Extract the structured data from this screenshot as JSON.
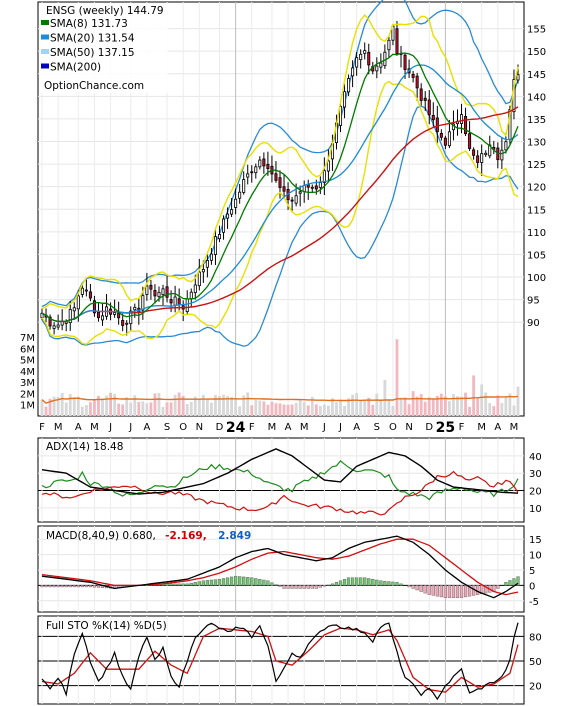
{
  "chart_data": {
    "type": "line",
    "price_panel": {
      "ticker_label": "ENSG (weekly) 144.79",
      "watermark": "OptionChance.com",
      "legend": [
        {
          "text": "SMA(8) 131.73",
          "color": "#007a00"
        },
        {
          "text": "SMA(20) 131.54",
          "color": "#1a8cd8"
        },
        {
          "text": "SMA(50) 137.15",
          "color": "#9fd4f5"
        },
        {
          "text": "SMA(200)",
          "color": "#0000c0"
        }
      ],
      "y_ticks": [
        90,
        95,
        100,
        105,
        110,
        115,
        120,
        125,
        130,
        135,
        140,
        145,
        150,
        155
      ],
      "ylim": [
        86.5,
        160
      ],
      "volume_ticks": [
        "1M",
        "2M",
        "3M",
        "4M",
        "5M",
        "6M",
        "7M"
      ],
      "x_months": [
        {
          "label": "F",
          "i": 0
        },
        {
          "label": "M",
          "i": 4
        },
        {
          "label": "A",
          "i": 9
        },
        {
          "label": "M",
          "i": 13
        },
        {
          "label": "J",
          "i": 17
        },
        {
          "label": "J",
          "i": 22
        },
        {
          "label": "A",
          "i": 26
        },
        {
          "label": "S",
          "i": 31
        },
        {
          "label": "O",
          "i": 35
        },
        {
          "label": "N",
          "i": 39
        },
        {
          "label": "D",
          "i": 44
        },
        {
          "label": "24",
          "i": 48,
          "bold": true
        },
        {
          "label": "F",
          "i": 52
        },
        {
          "label": "M",
          "i": 57
        },
        {
          "label": "A",
          "i": 61
        },
        {
          "label": "M",
          "i": 65
        },
        {
          "label": "J",
          "i": 70
        },
        {
          "label": "J",
          "i": 74
        },
        {
          "label": "A",
          "i": 78
        },
        {
          "label": "S",
          "i": 83
        },
        {
          "label": "O",
          "i": 87
        },
        {
          "label": "N",
          "i": 91
        },
        {
          "label": "D",
          "i": 96
        },
        {
          "label": "25",
          "i": 100,
          "bold": true
        },
        {
          "label": "F",
          "i": 104
        },
        {
          "label": "M",
          "i": 109
        },
        {
          "label": "A",
          "i": 113
        },
        {
          "label": "M",
          "i": 117
        }
      ],
      "close_anchors": [
        [
          0,
          92
        ],
        [
          2,
          90
        ],
        [
          4,
          89.5
        ],
        [
          6,
          91
        ],
        [
          8,
          93
        ],
        [
          9,
          96
        ],
        [
          10,
          98
        ],
        [
          12,
          95
        ],
        [
          14,
          91
        ],
        [
          16,
          93
        ],
        [
          18,
          92
        ],
        [
          20,
          90
        ],
        [
          22,
          91.5
        ],
        [
          24,
          93
        ],
        [
          25,
          96
        ],
        [
          27,
          98
        ],
        [
          28,
          96
        ],
        [
          30,
          97
        ],
        [
          32,
          95
        ],
        [
          34,
          94
        ],
        [
          35,
          93.5
        ],
        [
          36,
          95
        ],
        [
          37,
          97
        ],
        [
          38,
          99
        ],
        [
          40,
          102
        ],
        [
          42,
          106
        ],
        [
          44,
          110
        ],
        [
          46,
          114
        ],
        [
          48,
          117
        ],
        [
          50,
          121
        ],
        [
          52,
          124
        ],
        [
          54,
          126
        ],
        [
          56,
          125
        ],
        [
          58,
          121
        ],
        [
          60,
          118
        ],
        [
          62,
          117
        ],
        [
          64,
          119
        ],
        [
          66,
          120
        ],
        [
          68,
          120
        ],
        [
          70,
          123
        ],
        [
          72,
          130
        ],
        [
          74,
          137
        ],
        [
          76,
          143
        ],
        [
          78,
          148
        ],
        [
          80,
          150
        ],
        [
          82,
          146
        ],
        [
          84,
          148
        ],
        [
          86,
          152
        ],
        [
          87,
          155
        ],
        [
          88,
          150
        ],
        [
          90,
          147
        ],
        [
          92,
          144
        ],
        [
          94,
          140
        ],
        [
          96,
          136
        ],
        [
          98,
          132
        ],
        [
          100,
          130
        ],
        [
          102,
          133
        ],
        [
          104,
          137
        ],
        [
          106,
          128
        ],
        [
          108,
          125
        ],
        [
          110,
          128
        ],
        [
          112,
          129
        ],
        [
          113,
          127
        ],
        [
          115,
          131
        ],
        [
          116,
          137
        ],
        [
          117,
          143
        ],
        [
          118,
          144.79
        ]
      ],
      "sma8_end": 131.73,
      "sma20_end": 131.54,
      "sma50_end": 137.15
    },
    "adx_panel": {
      "label": "ADX(14) 18.48",
      "y_ticks": [
        10,
        20,
        30,
        40
      ],
      "ylim": [
        3,
        48
      ],
      "adx_anchors": [
        [
          0,
          32
        ],
        [
          6,
          30
        ],
        [
          12,
          22
        ],
        [
          18,
          20
        ],
        [
          24,
          18
        ],
        [
          30,
          19
        ],
        [
          36,
          22
        ],
        [
          40,
          24
        ],
        [
          46,
          30
        ],
        [
          52,
          38
        ],
        [
          58,
          44
        ],
        [
          62,
          40
        ],
        [
          66,
          33
        ],
        [
          70,
          26
        ],
        [
          74,
          25
        ],
        [
          78,
          34
        ],
        [
          82,
          38
        ],
        [
          86,
          42
        ],
        [
          90,
          40
        ],
        [
          94,
          34
        ],
        [
          98,
          26
        ],
        [
          102,
          22
        ],
        [
          106,
          21
        ],
        [
          110,
          20
        ],
        [
          114,
          19
        ],
        [
          118,
          18.48
        ]
      ],
      "plus_di_anchors": [
        [
          0,
          22
        ],
        [
          4,
          25
        ],
        [
          8,
          26
        ],
        [
          10,
          30
        ],
        [
          12,
          24
        ],
        [
          16,
          23
        ],
        [
          20,
          17
        ],
        [
          24,
          18
        ],
        [
          28,
          24
        ],
        [
          32,
          22
        ],
        [
          36,
          28
        ],
        [
          38,
          30
        ],
        [
          40,
          33
        ],
        [
          44,
          34
        ],
        [
          48,
          32
        ],
        [
          52,
          30
        ],
        [
          56,
          24
        ],
        [
          60,
          21
        ],
        [
          62,
          20
        ],
        [
          64,
          24
        ],
        [
          66,
          25
        ],
        [
          70,
          31
        ],
        [
          74,
          36
        ],
        [
          78,
          32
        ],
        [
          82,
          31
        ],
        [
          86,
          28
        ],
        [
          88,
          20
        ],
        [
          92,
          18
        ],
        [
          96,
          16
        ],
        [
          100,
          20
        ],
        [
          104,
          22
        ],
        [
          108,
          19
        ],
        [
          112,
          18
        ],
        [
          115,
          20
        ],
        [
          118,
          26
        ]
      ],
      "minus_di_anchors": [
        [
          0,
          19
        ],
        [
          4,
          17
        ],
        [
          8,
          16
        ],
        [
          12,
          20
        ],
        [
          16,
          21
        ],
        [
          20,
          23
        ],
        [
          24,
          22
        ],
        [
          28,
          18
        ],
        [
          32,
          19
        ],
        [
          36,
          17
        ],
        [
          40,
          14
        ],
        [
          44,
          12
        ],
        [
          48,
          10
        ],
        [
          52,
          9
        ],
        [
          56,
          10
        ],
        [
          60,
          17
        ],
        [
          64,
          12
        ],
        [
          68,
          11
        ],
        [
          72,
          10
        ],
        [
          76,
          8
        ],
        [
          80,
          7
        ],
        [
          84,
          7
        ],
        [
          86,
          8
        ],
        [
          90,
          16
        ],
        [
          94,
          20
        ],
        [
          98,
          28
        ],
        [
          102,
          30
        ],
        [
          106,
          25
        ],
        [
          108,
          27
        ],
        [
          112,
          22
        ],
        [
          115,
          26
        ],
        [
          118,
          20
        ]
      ]
    },
    "macd_panel": {
      "label_prefix": "MACD(8,40,9) 0.680,",
      "signal_value": "-2.169,",
      "hist_value": "2.849",
      "y_ticks": [
        -5,
        0,
        5,
        10,
        15
      ],
      "ylim": [
        -8,
        18
      ],
      "macd_anchors": [
        [
          0,
          3
        ],
        [
          6,
          2
        ],
        [
          12,
          1
        ],
        [
          18,
          -1
        ],
        [
          24,
          0
        ],
        [
          30,
          1
        ],
        [
          36,
          2
        ],
        [
          40,
          4
        ],
        [
          44,
          6
        ],
        [
          48,
          9
        ],
        [
          52,
          11
        ],
        [
          56,
          12
        ],
        [
          60,
          10
        ],
        [
          64,
          9
        ],
        [
          68,
          8
        ],
        [
          72,
          9
        ],
        [
          76,
          12
        ],
        [
          80,
          14
        ],
        [
          84,
          15
        ],
        [
          88,
          16
        ],
        [
          92,
          14
        ],
        [
          96,
          10
        ],
        [
          100,
          5
        ],
        [
          104,
          1
        ],
        [
          108,
          -2
        ],
        [
          112,
          -4
        ],
        [
          115,
          -2
        ],
        [
          118,
          0.68
        ]
      ],
      "signal_anchors": [
        [
          0,
          3.5
        ],
        [
          6,
          2.5
        ],
        [
          12,
          1.5
        ],
        [
          18,
          0
        ],
        [
          24,
          0
        ],
        [
          30,
          0.5
        ],
        [
          36,
          1.5
        ],
        [
          40,
          2.5
        ],
        [
          44,
          4
        ],
        [
          48,
          6
        ],
        [
          52,
          8.5
        ],
        [
          56,
          10.5
        ],
        [
          60,
          11
        ],
        [
          64,
          10
        ],
        [
          68,
          9
        ],
        [
          72,
          8.5
        ],
        [
          76,
          9.5
        ],
        [
          80,
          11.5
        ],
        [
          84,
          13.5
        ],
        [
          88,
          15
        ],
        [
          92,
          15
        ],
        [
          96,
          13
        ],
        [
          100,
          9
        ],
        [
          104,
          5
        ],
        [
          108,
          1
        ],
        [
          112,
          -2
        ],
        [
          115,
          -3
        ],
        [
          118,
          -2.169
        ]
      ]
    },
    "sto_panel": {
      "label": "Full STO %K(14) %D(5)",
      "y_ticks": [
        20,
        50,
        80
      ],
      "ylim": [
        0,
        100
      ],
      "k_anchors": [
        [
          0,
          30
        ],
        [
          2,
          15
        ],
        [
          4,
          30
        ],
        [
          6,
          10
        ],
        [
          8,
          60
        ],
        [
          10,
          85
        ],
        [
          12,
          50
        ],
        [
          14,
          25
        ],
        [
          16,
          40
        ],
        [
          18,
          60
        ],
        [
          20,
          30
        ],
        [
          22,
          15
        ],
        [
          24,
          55
        ],
        [
          26,
          80
        ],
        [
          28,
          50
        ],
        [
          30,
          65
        ],
        [
          32,
          30
        ],
        [
          34,
          20
        ],
        [
          36,
          50
        ],
        [
          38,
          80
        ],
        [
          40,
          90
        ],
        [
          42,
          95
        ],
        [
          44,
          90
        ],
        [
          46,
          85
        ],
        [
          48,
          90
        ],
        [
          50,
          88
        ],
        [
          52,
          80
        ],
        [
          54,
          92
        ],
        [
          56,
          70
        ],
        [
          58,
          25
        ],
        [
          60,
          40
        ],
        [
          62,
          60
        ],
        [
          64,
          55
        ],
        [
          66,
          70
        ],
        [
          68,
          80
        ],
        [
          70,
          90
        ],
        [
          72,
          95
        ],
        [
          74,
          92
        ],
        [
          76,
          90
        ],
        [
          78,
          88
        ],
        [
          80,
          85
        ],
        [
          82,
          75
        ],
        [
          84,
          92
        ],
        [
          86,
          95
        ],
        [
          88,
          60
        ],
        [
          90,
          30
        ],
        [
          92,
          20
        ],
        [
          94,
          10
        ],
        [
          96,
          15
        ],
        [
          98,
          5
        ],
        [
          100,
          20
        ],
        [
          102,
          30
        ],
        [
          104,
          40
        ],
        [
          106,
          10
        ],
        [
          108,
          15
        ],
        [
          110,
          20
        ],
        [
          112,
          25
        ],
        [
          114,
          30
        ],
        [
          116,
          50
        ],
        [
          117,
          80
        ],
        [
          118,
          95
        ]
      ],
      "d_anchors": [
        [
          0,
          25
        ],
        [
          4,
          22
        ],
        [
          8,
          35
        ],
        [
          12,
          60
        ],
        [
          16,
          40
        ],
        [
          20,
          40
        ],
        [
          24,
          40
        ],
        [
          28,
          62
        ],
        [
          32,
          45
        ],
        [
          36,
          35
        ],
        [
          40,
          80
        ],
        [
          44,
          90
        ],
        [
          48,
          88
        ],
        [
          52,
          86
        ],
        [
          56,
          80
        ],
        [
          58,
          50
        ],
        [
          62,
          45
        ],
        [
          66,
          62
        ],
        [
          70,
          82
        ],
        [
          74,
          90
        ],
        [
          78,
          88
        ],
        [
          82,
          82
        ],
        [
          86,
          88
        ],
        [
          88,
          75
        ],
        [
          92,
          30
        ],
        [
          96,
          15
        ],
        [
          100,
          12
        ],
        [
          104,
          30
        ],
        [
          108,
          18
        ],
        [
          112,
          22
        ],
        [
          116,
          35
        ],
        [
          118,
          70
        ]
      ]
    }
  }
}
